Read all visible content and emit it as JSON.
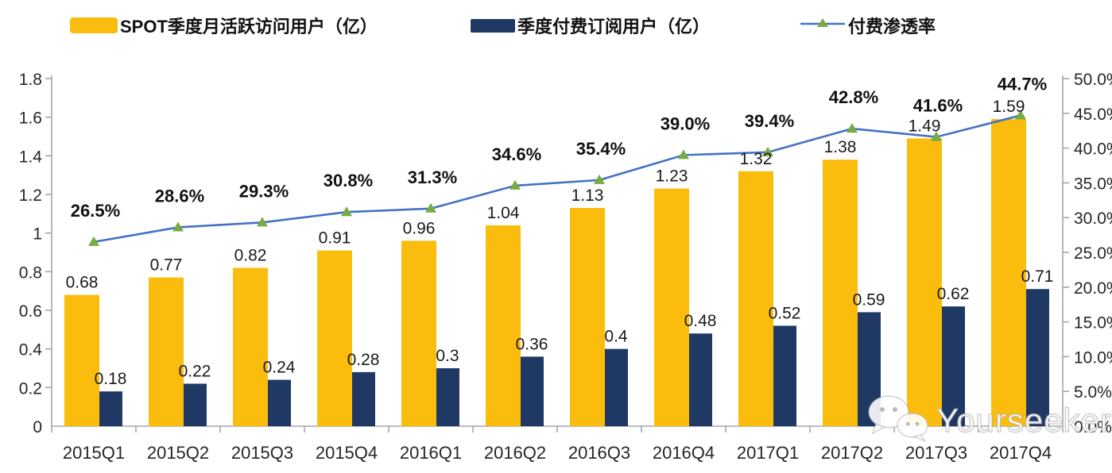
{
  "legend": [
    {
      "label": "SPOT季度月活跃访问用户（亿）",
      "color": "#FBBD0D",
      "type": "bar"
    },
    {
      "label": "季度付费订阅用户（亿）",
      "color": "#1F3864",
      "type": "bar"
    },
    {
      "label": "付费渗透率",
      "color": "#4472C4",
      "marker_color": "#77AB43",
      "type": "line"
    }
  ],
  "watermark": {
    "text": "Yourseeker"
  },
  "chart_data": {
    "type": "bar",
    "subtype": "combo-bar-line",
    "title": "",
    "xlabel": "",
    "ylabel_left": "",
    "ylabel_right": "",
    "grid": false,
    "legend_position": "top",
    "categories": [
      "2015Q1",
      "2015Q2",
      "2015Q3",
      "2015Q4",
      "2016Q1",
      "2016Q2",
      "2016Q3",
      "2016Q4",
      "2017Q1",
      "2017Q2",
      "2017Q3",
      "2017Q4"
    ],
    "series": [
      {
        "name": "SPOT季度月活跃访问用户（亿）",
        "type": "bar",
        "axis": "left",
        "color": "#FBBD0D",
        "values": [
          0.68,
          0.77,
          0.82,
          0.91,
          0.96,
          1.04,
          1.13,
          1.23,
          1.32,
          1.38,
          1.49,
          1.59
        ],
        "labels": [
          "0.68",
          "0.77",
          "0.82",
          "0.91",
          "0.96",
          "1.04",
          "1.13",
          "1.23",
          "1.32",
          "1.38",
          "1.49",
          "1.59"
        ]
      },
      {
        "name": "季度付费订阅用户（亿）",
        "type": "bar",
        "axis": "left",
        "color": "#1F3864",
        "values": [
          0.18,
          0.22,
          0.24,
          0.28,
          0.3,
          0.36,
          0.4,
          0.48,
          0.52,
          0.59,
          0.62,
          0.71
        ],
        "labels": [
          "0.18",
          "0.22",
          "0.24",
          "0.28",
          "0.3",
          "0.36",
          "0.4",
          "0.48",
          "0.52",
          "0.59",
          "0.62",
          "0.71"
        ]
      },
      {
        "name": "付费渗透率",
        "type": "line",
        "axis": "right",
        "color": "#4472C4",
        "marker": "triangle",
        "marker_color": "#77AB43",
        "values": [
          26.5,
          28.6,
          29.3,
          30.8,
          31.3,
          34.6,
          35.4,
          39.0,
          39.4,
          42.8,
          41.6,
          44.7
        ],
        "labels": [
          "26.5%",
          "28.6%",
          "29.3%",
          "30.8%",
          "31.3%",
          "34.6%",
          "35.4%",
          "39.0%",
          "39.4%",
          "42.8%",
          "41.6%",
          "44.7%"
        ]
      }
    ],
    "left_axis": {
      "min": 0,
      "max": 1.8,
      "step": 0.2,
      "ticks": [
        "0",
        "0.2",
        "0.4",
        "0.6",
        "0.8",
        "1",
        "1.2",
        "1.4",
        "1.6",
        "1.8"
      ]
    },
    "right_axis": {
      "min": 0,
      "max": 50,
      "step": 5,
      "ticks": [
        "0.0%",
        "5.0%",
        "10.0%",
        "15.0%",
        "20.0%",
        "25.0%",
        "30.0%",
        "35.0%",
        "40.0%",
        "45.0%",
        "50.0%"
      ]
    },
    "axis_color": "#A6A6A6"
  }
}
